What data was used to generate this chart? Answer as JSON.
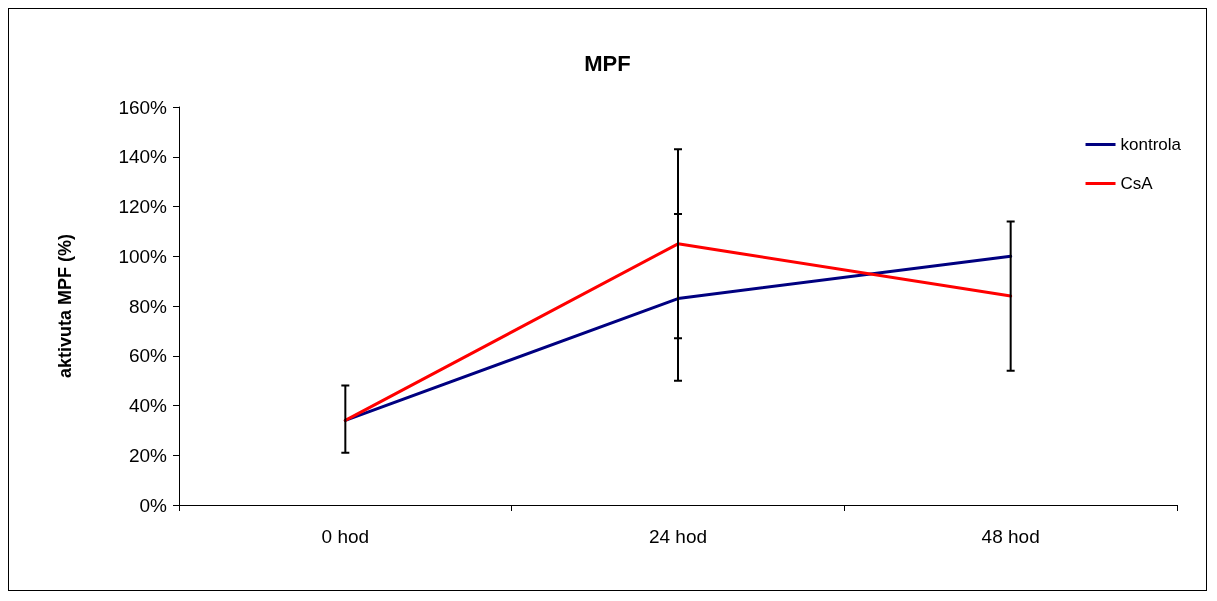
{
  "chart_data": {
    "type": "line",
    "title": "MPF",
    "ylabel": "aktivuta MPF (%)",
    "categories": [
      "0 hod",
      "24 hod",
      "48 hod"
    ],
    "series": [
      {
        "name": "kontrola",
        "color": "#000080",
        "values": [
          34,
          83,
          100
        ],
        "errors": [
          [
            21,
            48
          ],
          [
            50,
            117
          ],
          null
        ]
      },
      {
        "name": "CsA",
        "color": "#ff0000",
        "values": [
          34,
          105,
          84
        ],
        "errors": [
          null,
          [
            67,
            143
          ],
          [
            54,
            114
          ]
        ]
      }
    ],
    "ylim": [
      0,
      160
    ],
    "yticks": [
      {
        "value": 0,
        "label": "0%"
      },
      {
        "value": 20,
        "label": "20%"
      },
      {
        "value": 40,
        "label": "40%"
      },
      {
        "value": 60,
        "label": "60%"
      },
      {
        "value": 80,
        "label": "80%"
      },
      {
        "value": 100,
        "label": "100%"
      },
      {
        "value": 120,
        "label": "120%"
      },
      {
        "value": 140,
        "label": "140%"
      },
      {
        "value": 160,
        "label": "160%"
      }
    ],
    "grid": false,
    "legend": "top right",
    "marker": "none",
    "line_style": "solid"
  }
}
